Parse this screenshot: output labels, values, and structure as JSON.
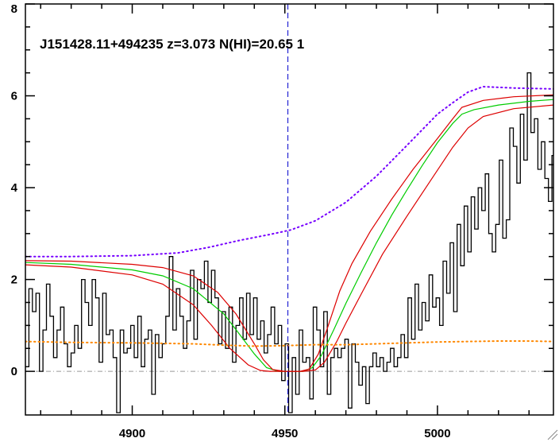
{
  "chart_data": {
    "type": "line",
    "title": "J151428.11+494235 z=3.073 N(HI)=20.65 1",
    "xlabel": "",
    "ylabel": "",
    "xlim": [
      4865,
      5038
    ],
    "ylim": [
      -0.95,
      8.0
    ],
    "grid": false,
    "x_ticks": [
      4900,
      4950,
      5000
    ],
    "y_ticks": [
      0,
      2,
      4,
      6,
      8
    ],
    "marker_line_x": 4951,
    "zero_line_y": 0,
    "colors": {
      "flux": "#000000",
      "fit": "#00cc00",
      "fit_bounds": "#dd0000",
      "continuum": "#7700ff",
      "error": "#ff8800",
      "marker": "#0000cc",
      "zero": "#999999"
    },
    "series": [
      {
        "style": "histogram",
        "color": "#000000",
        "x0": 4865,
        "dx": 1.15,
        "values": [
          0.1,
          1.8,
          1.3,
          1.7,
          0.0,
          0.9,
          1.9,
          1.2,
          0.3,
          0.9,
          1.4,
          0.6,
          0.1,
          0.4,
          1.0,
          0.5,
          2.0,
          1.5,
          1.0,
          2.0,
          1.6,
          0.2,
          1.7,
          0.8,
          0.9,
          0.3,
          -0.9,
          0.9,
          0.4,
          0.5,
          1.0,
          0.3,
          1.2,
          0.1,
          0.7,
          0.9,
          -0.5,
          0.8,
          0.3,
          0.6,
          1.2,
          2.5,
          0.9,
          1.8,
          1.2,
          0.5,
          1.1,
          2.2,
          0.7,
          2.0,
          1.8,
          2.4,
          1.5,
          2.2,
          1.6,
          0.6,
          1.3,
          0.5,
          1.4,
          0.2,
          1.0,
          1.6,
          0.7,
          1.7,
          0.8,
          1.6,
          0.7,
          1.1,
          0.4,
          0.8,
          1.4,
          0.6,
          1.0,
          -0.2,
          0.6,
          -0.9,
          0.3,
          -0.5,
          0.9,
          0.2,
          0.3,
          -0.6,
          1.4,
          0.9,
          0.1,
          1.3,
          -0.5,
          0.3,
          0.5,
          0.3,
          0.5,
          0.7,
          -0.8,
          0.6,
          0.2,
          -0.3,
          0.1,
          -0.7,
          0.1,
          0.4,
          0.1,
          0.3,
          0.0,
          0.2,
          0.5,
          0.1,
          0.3,
          0.8,
          0.3,
          1.6,
          0.7,
          1.9,
          0.9,
          1.5,
          1.1,
          2.1,
          1.4,
          1.6,
          1.0,
          2.4,
          1.7,
          2.8,
          1.3,
          3.2,
          2.3,
          3.6,
          2.6,
          3.8,
          3.1,
          4.0,
          3.5,
          4.3,
          3.0,
          2.6,
          3.2,
          4.6,
          2.9,
          3.3,
          5.3,
          4.9,
          4.1,
          5.6,
          4.6,
          6.5,
          5.2,
          5.5,
          4.4,
          5.0,
          4.2,
          3.7,
          4.7,
          3.5,
          3.9,
          3.7,
          3.6,
          4.2,
          3.3,
          3.8,
          4.5,
          3.0,
          4.7
        ]
      },
      {
        "style": "solid",
        "color": "#00cc00",
        "x": [
          4865,
          4880,
          4900,
          4910,
          4920,
          4930,
          4935,
          4940,
          4944,
          4948,
          4952,
          4956,
          4959,
          4962,
          4966,
          4970,
          4975,
          4980,
          4985,
          4990,
          4995,
          5000,
          5005,
          5008,
          5012,
          5020,
          5030,
          5038
        ],
        "y": [
          2.37,
          2.33,
          2.21,
          2.08,
          1.8,
          1.25,
          0.82,
          0.38,
          0.08,
          0.0,
          0.0,
          0.0,
          0.08,
          0.35,
          0.9,
          1.48,
          2.15,
          2.8,
          3.4,
          3.95,
          4.48,
          4.98,
          5.4,
          5.6,
          5.7,
          5.8,
          5.88,
          5.92
        ]
      },
      {
        "style": "solid",
        "color": "#dd0000",
        "x": [
          4865,
          4880,
          4900,
          4910,
          4920,
          4928,
          4934,
          4940,
          4943,
          4946,
          4950,
          4955,
          4958,
          4961,
          4964,
          4968,
          4972,
          4978,
          4985,
          4992,
          5000,
          5005,
          5008,
          5015,
          5025,
          5038
        ],
        "y": [
          2.41,
          2.4,
          2.33,
          2.26,
          2.08,
          1.72,
          1.25,
          0.6,
          0.25,
          0.04,
          0.0,
          0.0,
          0.05,
          0.38,
          0.95,
          1.75,
          2.35,
          3.05,
          3.75,
          4.4,
          5.07,
          5.5,
          5.75,
          5.9,
          5.98,
          6.02
        ]
      },
      {
        "style": "solid",
        "color": "#dd0000",
        "x": [
          4865,
          4880,
          4900,
          4910,
          4920,
          4926,
          4932,
          4938,
          4942,
          4945,
          4950,
          4956,
          4960,
          4963,
          4967,
          4970,
          4975,
          4982,
          4990,
          4998,
          5005,
          5010,
          5015,
          5025,
          5038
        ],
        "y": [
          2.32,
          2.27,
          2.1,
          1.9,
          1.45,
          1.0,
          0.5,
          0.14,
          0.02,
          0.0,
          0.0,
          0.0,
          0.03,
          0.2,
          0.65,
          1.05,
          1.68,
          2.55,
          3.38,
          4.18,
          4.88,
          5.3,
          5.55,
          5.72,
          5.8
        ]
      },
      {
        "style": "dotted",
        "color": "#7700ff",
        "x": [
          4865,
          4880,
          4900,
          4915,
          4925,
          4935,
          4945,
          4952,
          4960,
          4970,
          4980,
          4990,
          5000,
          5005,
          5010,
          5015,
          5025,
          5038
        ],
        "y": [
          2.5,
          2.5,
          2.52,
          2.58,
          2.7,
          2.85,
          2.98,
          3.08,
          3.28,
          3.68,
          4.25,
          4.92,
          5.6,
          5.85,
          6.08,
          6.2,
          6.17,
          6.15
        ]
      },
      {
        "style": "dotted",
        "color": "#ff8800",
        "x": [
          4865,
          4880,
          4900,
          4920,
          4930,
          4940,
          4950,
          4960,
          4970,
          4980,
          4990,
          5000,
          5010,
          5020,
          5030,
          5038
        ],
        "y": [
          0.65,
          0.63,
          0.62,
          0.6,
          0.57,
          0.55,
          0.56,
          0.58,
          0.58,
          0.6,
          0.62,
          0.64,
          0.65,
          0.66,
          0.66,
          0.65
        ]
      }
    ]
  }
}
